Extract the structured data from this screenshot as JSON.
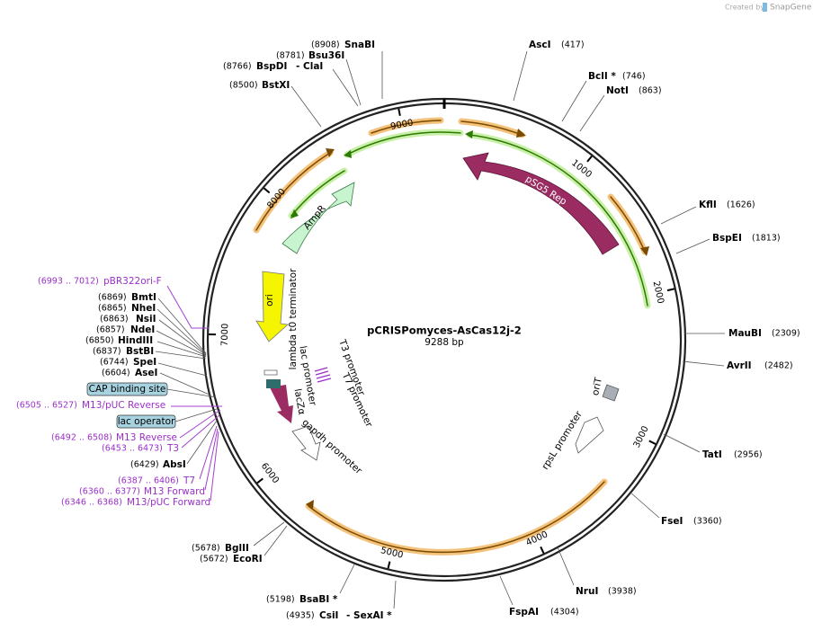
{
  "header": {
    "credit": "Created by",
    "brand": "SnapGene"
  },
  "plasmid": {
    "name": "pCRISPomyces-AsCas12j-2",
    "size": "9288 bp"
  },
  "ticks": [
    "1000",
    "2000",
    "3000",
    "4000",
    "5000",
    "6000",
    "7000",
    "8000",
    "9000"
  ],
  "sites": [
    {
      "name": "AscI",
      "position": "(417)"
    },
    {
      "name": "BclI *",
      "position": "(746)"
    },
    {
      "name": "NotI",
      "position": "(863)"
    },
    {
      "name": "KflI",
      "position": "(1626)"
    },
    {
      "name": "BspEI",
      "position": "(1813)"
    },
    {
      "name": "MauBI",
      "position": "(2309)"
    },
    {
      "name": "AvrII",
      "position": "(2482)"
    },
    {
      "name": "TatI",
      "position": "(2956)"
    },
    {
      "name": "FseI",
      "position": "(3360)"
    },
    {
      "name": "NruI",
      "position": "(3938)"
    },
    {
      "name": "FspAI",
      "position": "(4304)"
    },
    {
      "name": "CsiI",
      "name2": "- SexAI *",
      "position": "(4935)"
    },
    {
      "name": "BsaBI *",
      "position": "(5198)"
    },
    {
      "name": "EcoRI",
      "position": "(5672)"
    },
    {
      "name": "BglII",
      "position": "(5678)"
    },
    {
      "name": "AbsI",
      "position": "(6429)"
    },
    {
      "name": "AseI",
      "position": "(6604)"
    },
    {
      "name": "SpeI",
      "position": "(6744)"
    },
    {
      "name": "BstBI",
      "position": "(6837)"
    },
    {
      "name": "HindIII",
      "position": "(6850)"
    },
    {
      "name": "NdeI",
      "position": "(6857)"
    },
    {
      "name": "NsiI",
      "position": "(6863)"
    },
    {
      "name": "NheI",
      "position": "(6865)"
    },
    {
      "name": "BmtI",
      "position": "(6869)"
    },
    {
      "name": "BstXI",
      "position": "(8500)"
    },
    {
      "name": "BspDI",
      "name2": "- ClaI",
      "position": "(8766)"
    },
    {
      "name": "Bsu36I",
      "position": "(8781)"
    },
    {
      "name": "SnaBI",
      "position": "(8908)"
    }
  ],
  "primers": [
    {
      "name": "pBR322ori-F",
      "range": "(6993 .. 7012)"
    },
    {
      "name": "M13/pUC Reverse",
      "range": "(6505 .. 6527)"
    },
    {
      "name": "M13 Reverse",
      "range": "(6492 .. 6508)"
    },
    {
      "name": "T3",
      "range": "(6453 .. 6473)"
    },
    {
      "name": "T7",
      "range": "(6387 .. 6406)"
    },
    {
      "name": "M13 Forward",
      "range": "(6360 .. 6377)"
    },
    {
      "name": "M13/pUC Forward",
      "range": "(6346 .. 6368)"
    }
  ],
  "boxed_features": [
    "CAP binding site",
    "lac operator"
  ],
  "features": [
    "pSG5 Rep",
    "AmpR",
    "ori",
    "lambda t0 terminator",
    "lac promoter",
    "lacZα",
    "T3 promoter",
    "T7 promoter",
    "gapdh promoter",
    "oriT",
    "rpsL promoter"
  ]
}
